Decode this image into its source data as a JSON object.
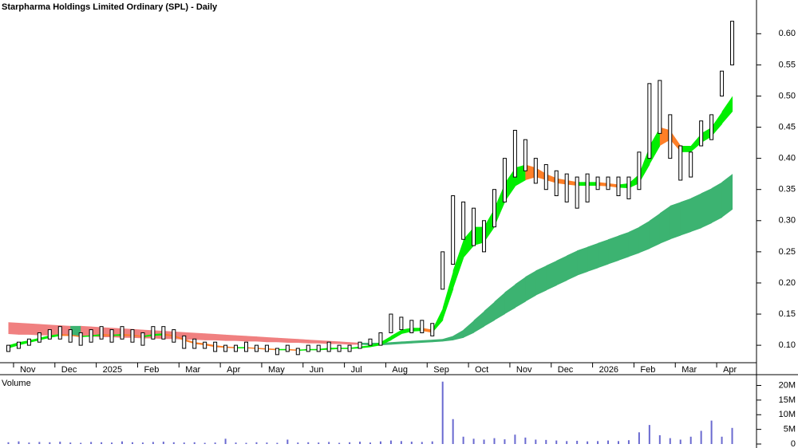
{
  "chart_data": [
    {
      "type": "range",
      "title": "Starpharma Holdings Limited Ordinary (SPL) - Daily",
      "color": "#000000",
      "categories": [
        null,
        "Nov",
        null,
        null,
        null,
        "Dec",
        null,
        null,
        null,
        "2025",
        null,
        null,
        null,
        "Feb",
        null,
        null,
        null,
        "Mar",
        null,
        null,
        null,
        "Apr",
        null,
        null,
        null,
        "May",
        null,
        null,
        null,
        "Jun",
        null,
        null,
        null,
        "Jul",
        null,
        null,
        null,
        "Aug",
        null,
        null,
        null,
        "Sep",
        null,
        null,
        null,
        "Oct",
        null,
        null,
        null,
        "Nov",
        null,
        null,
        null,
        "Dec",
        null,
        null,
        null,
        "2026",
        null,
        null,
        null,
        "Feb",
        null,
        null,
        null,
        "Mar",
        null,
        null,
        null,
        "Apr",
        null
      ],
      "high": [
        0.1,
        0.105,
        0.11,
        0.12,
        0.125,
        0.13,
        0.125,
        0.12,
        0.125,
        0.13,
        0.125,
        0.13,
        0.125,
        0.12,
        0.13,
        0.13,
        0.125,
        0.115,
        0.11,
        0.105,
        0.105,
        0.1,
        0.1,
        0.105,
        0.1,
        0.1,
        0.095,
        0.1,
        0.095,
        0.1,
        0.1,
        0.105,
        0.1,
        0.1,
        0.105,
        0.11,
        0.12,
        0.15,
        0.145,
        0.14,
        0.14,
        0.135,
        0.25,
        0.34,
        0.33,
        0.32,
        0.3,
        0.35,
        0.4,
        0.445,
        0.43,
        0.4,
        0.39,
        0.38,
        0.375,
        0.37,
        0.375,
        0.37,
        0.37,
        0.37,
        0.37,
        0.41,
        0.52,
        0.525,
        0.47,
        0.42,
        0.41,
        0.46,
        0.47,
        0.54,
        0.62
      ],
      "low": [
        0.09,
        0.095,
        0.1,
        0.105,
        0.11,
        0.11,
        0.105,
        0.1,
        0.105,
        0.11,
        0.105,
        0.11,
        0.105,
        0.1,
        0.11,
        0.11,
        0.105,
        0.095,
        0.095,
        0.095,
        0.09,
        0.09,
        0.09,
        0.09,
        0.09,
        0.09,
        0.085,
        0.09,
        0.085,
        0.09,
        0.09,
        0.09,
        0.09,
        0.09,
        0.095,
        0.1,
        0.1,
        0.12,
        0.125,
        0.12,
        0.12,
        0.115,
        0.19,
        0.23,
        0.27,
        0.26,
        0.25,
        0.29,
        0.33,
        0.37,
        0.38,
        0.36,
        0.35,
        0.34,
        0.33,
        0.32,
        0.33,
        0.35,
        0.35,
        0.34,
        0.335,
        0.35,
        0.4,
        0.44,
        0.4,
        0.365,
        0.37,
        0.42,
        0.43,
        0.5,
        0.55
      ],
      "bands": [
        {
          "color": "#3cb371",
          "color_falling": "#f08080",
          "upper": [
            0.137,
            0.136,
            0.135,
            0.134,
            0.133,
            0.132,
            0.131,
            0.131,
            0.13,
            0.129,
            0.128,
            0.127,
            0.126,
            0.125,
            0.124,
            0.123,
            0.122,
            0.121,
            0.12,
            0.119,
            0.118,
            0.117,
            0.116,
            0.115,
            0.114,
            0.113,
            0.112,
            0.111,
            0.11,
            0.109,
            0.108,
            0.107,
            0.106,
            0.105,
            0.104,
            0.104,
            0.104,
            0.105,
            0.106,
            0.107,
            0.108,
            0.109,
            0.11,
            0.115,
            0.125,
            0.14,
            0.155,
            0.17,
            0.185,
            0.198,
            0.21,
            0.22,
            0.228,
            0.236,
            0.244,
            0.252,
            0.258,
            0.264,
            0.27,
            0.276,
            0.282,
            0.29,
            0.3,
            0.312,
            0.324,
            0.33,
            0.336,
            0.344,
            0.352,
            0.362,
            0.375
          ],
          "lower": [
            0.118,
            0.117,
            0.117,
            0.116,
            0.116,
            0.115,
            0.115,
            0.114,
            0.114,
            0.113,
            0.113,
            0.112,
            0.112,
            0.111,
            0.111,
            0.11,
            0.11,
            0.109,
            0.109,
            0.108,
            0.108,
            0.107,
            0.107,
            0.106,
            0.106,
            0.105,
            0.105,
            0.104,
            0.104,
            0.103,
            0.103,
            0.102,
            0.102,
            0.101,
            0.101,
            0.1,
            0.1,
            0.101,
            0.102,
            0.103,
            0.104,
            0.105,
            0.106,
            0.108,
            0.112,
            0.12,
            0.13,
            0.14,
            0.15,
            0.16,
            0.17,
            0.18,
            0.188,
            0.196,
            0.204,
            0.212,
            0.218,
            0.224,
            0.23,
            0.236,
            0.242,
            0.248,
            0.255,
            0.263,
            0.27,
            0.276,
            0.282,
            0.288,
            0.296,
            0.305,
            0.318
          ]
        },
        {
          "color": "#00ee00",
          "color_falling": "#ff7f27",
          "upper": [
            0.1,
            0.105,
            0.108,
            0.112,
            0.116,
            0.118,
            0.117,
            0.115,
            0.116,
            0.118,
            0.117,
            0.118,
            0.117,
            0.115,
            0.118,
            0.119,
            0.116,
            0.11,
            0.105,
            0.103,
            0.1,
            0.098,
            0.097,
            0.097,
            0.096,
            0.095,
            0.094,
            0.094,
            0.093,
            0.094,
            0.094,
            0.096,
            0.096,
            0.096,
            0.098,
            0.1,
            0.105,
            0.115,
            0.125,
            0.128,
            0.128,
            0.125,
            0.16,
            0.22,
            0.27,
            0.29,
            0.29,
            0.32,
            0.36,
            0.385,
            0.39,
            0.385,
            0.375,
            0.368,
            0.365,
            0.362,
            0.362,
            0.362,
            0.36,
            0.358,
            0.36,
            0.375,
            0.42,
            0.45,
            0.445,
            0.42,
            0.42,
            0.44,
            0.45,
            0.475,
            0.5
          ],
          "lower": [
            0.095,
            0.1,
            0.104,
            0.108,
            0.112,
            0.115,
            0.115,
            0.113,
            0.114,
            0.115,
            0.115,
            0.115,
            0.115,
            0.113,
            0.115,
            0.116,
            0.114,
            0.107,
            0.102,
            0.1,
            0.097,
            0.096,
            0.095,
            0.095,
            0.094,
            0.093,
            0.092,
            0.092,
            0.091,
            0.092,
            0.092,
            0.093,
            0.094,
            0.094,
            0.095,
            0.097,
            0.1,
            0.108,
            0.118,
            0.122,
            0.123,
            0.12,
            0.14,
            0.19,
            0.24,
            0.26,
            0.265,
            0.29,
            0.33,
            0.355,
            0.365,
            0.37,
            0.365,
            0.36,
            0.358,
            0.356,
            0.356,
            0.356,
            0.355,
            0.353,
            0.352,
            0.36,
            0.39,
            0.42,
            0.43,
            0.41,
            0.41,
            0.425,
            0.435,
            0.455,
            0.475
          ]
        }
      ],
      "ylim": [
        0.072,
        0.649
      ],
      "yticks": [
        {
          "value": 0.1,
          "label": "0.10"
        },
        0.15,
        {
          "value": 0.2,
          "label": "0.20"
        },
        0.25,
        {
          "value": 0.3,
          "label": "0.30"
        },
        0.35,
        {
          "value": 0.4,
          "label": "0.40"
        },
        0.45,
        {
          "value": 0.5,
          "label": "0.50"
        },
        0.55,
        {
          "value": 0.6,
          "label": "0.60"
        }
      ]
    },
    {
      "type": "bar",
      "title": "Volume",
      "color": "#6a6ad0",
      "values": [
        600000,
        900000,
        500000,
        700000,
        600000,
        800000,
        500000,
        400000,
        700000,
        600000,
        500000,
        900000,
        600000,
        500000,
        700000,
        800000,
        600000,
        500000,
        600000,
        400000,
        500000,
        1800000,
        500000,
        400000,
        600000,
        500000,
        400000,
        1500000,
        500000,
        600000,
        500000,
        700000,
        400000,
        600000,
        800000,
        500000,
        900000,
        1200000,
        1000000,
        800000,
        700000,
        900000,
        21300000,
        8500000,
        2500000,
        1800000,
        1500000,
        2000000,
        1600000,
        3200000,
        2200000,
        1500000,
        1400000,
        1200000,
        1000000,
        1100000,
        900000,
        1000000,
        1200000,
        1000000,
        1300000,
        4000000,
        6500000,
        3000000,
        2000000,
        1500000,
        2500000,
        4500000,
        8000000,
        2500000,
        5500000
      ],
      "ylim": [
        0,
        21500000
      ],
      "yticks": [
        0,
        {
          "value": 5000000,
          "label": "5M"
        },
        {
          "value": 10000000,
          "label": "10M"
        },
        {
          "value": 15000000,
          "label": "15M"
        },
        {
          "value": 20000000,
          "label": "20M"
        }
      ]
    }
  ]
}
